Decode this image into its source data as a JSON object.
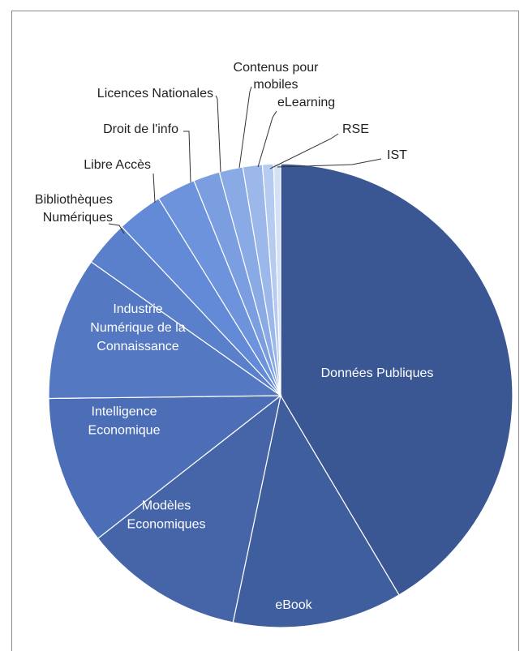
{
  "chart_data": {
    "type": "pie",
    "title": "",
    "slices": [
      {
        "label": "Données Publiques",
        "value": 42.8,
        "color": "#3a5794"
      },
      {
        "label": "eBook",
        "value": 12.2,
        "color": "#3f5e9e"
      },
      {
        "label": "Modèles Economiques",
        "value": 11.5,
        "color": "#4565a8"
      },
      {
        "label": "Intelligence Economique",
        "value": 10.7,
        "color": "#4c6eb6"
      },
      {
        "label": "Industrie Numérique de la Connaissance",
        "value": 10.3,
        "color": "#5478c2"
      },
      {
        "label": "Bibliothèques Numériques",
        "value": 3.3,
        "color": "#5a80cc"
      },
      {
        "label": "Libre Accès",
        "value": 3.3,
        "color": "#628ad6"
      },
      {
        "label": "Droit de l'info",
        "value": 2.8,
        "color": "#6c93dc"
      },
      {
        "label": "Licences Nationales",
        "value": 1.9,
        "color": "#7a9edf"
      },
      {
        "label": "Contenus pour mobiles",
        "value": 1.7,
        "color": "#89aae4"
      },
      {
        "label": "eLearning",
        "value": 1.4,
        "color": "#9cb8ea"
      },
      {
        "label": "RSE",
        "value": 0.8,
        "color": "#b5cbf0"
      },
      {
        "label": "IST",
        "value": 0.5,
        "color": "#d4e0f6"
      }
    ]
  }
}
